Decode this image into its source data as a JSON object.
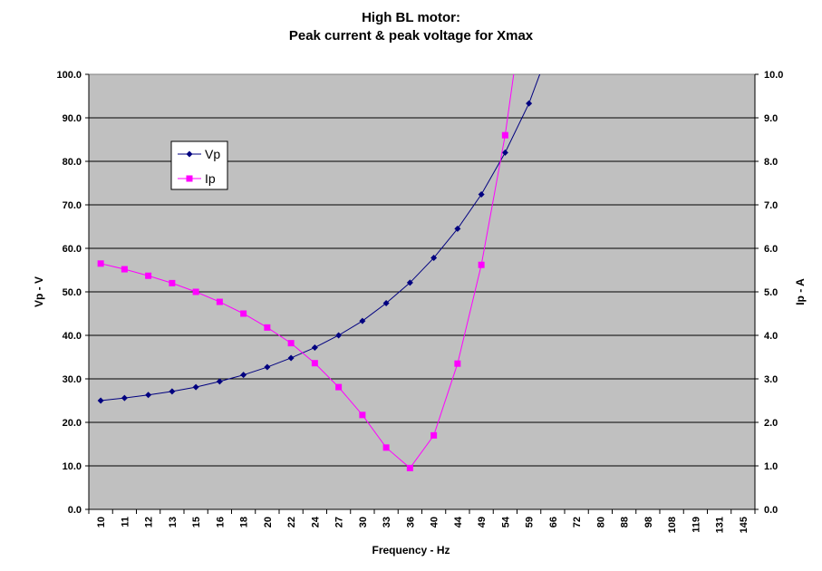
{
  "chart_data": {
    "type": "line",
    "title": "High BL motor:",
    "subtitle": "Peak current & peak voltage for Xmax",
    "xlabel": "Frequency - Hz",
    "ylabel": "Vp - V",
    "ylabel_right": "Ip - A",
    "categories": [
      "10",
      "11",
      "12",
      "13",
      "15",
      "16",
      "18",
      "20",
      "22",
      "24",
      "27",
      "30",
      "33",
      "36",
      "40",
      "44",
      "49",
      "54",
      "59",
      "66",
      "72",
      "80",
      "88",
      "98",
      "108",
      "119",
      "131",
      "145"
    ],
    "yticks_left": [
      "0.0",
      "10.0",
      "20.0",
      "30.0",
      "40.0",
      "50.0",
      "60.0",
      "70.0",
      "80.0",
      "90.0",
      "100.0"
    ],
    "yticks_right": [
      "0.0",
      "1.0",
      "2.0",
      "3.0",
      "4.0",
      "5.0",
      "6.0",
      "7.0",
      "8.0",
      "9.0",
      "10.0"
    ],
    "ylim": [
      0,
      100
    ],
    "ylim_right": [
      0,
      10
    ],
    "grid": true,
    "legend_position": "upper-left inside plot",
    "series": [
      {
        "name": "Vp",
        "axis": "left",
        "color": "#000080",
        "marker": "diamond",
        "values": [
          25.0,
          25.6,
          26.3,
          27.1,
          28.1,
          29.4,
          30.9,
          32.7,
          34.8,
          37.2,
          40.0,
          43.3,
          47.4,
          52.1,
          57.8,
          64.5,
          72.4,
          82.0,
          93.3,
          108.0,
          null,
          null,
          null,
          null,
          null,
          null,
          null,
          null
        ]
      },
      {
        "name": "Ip",
        "axis": "right",
        "color": "#FF00FF",
        "marker": "square",
        "values": [
          5.65,
          5.52,
          5.37,
          5.2,
          5.0,
          4.77,
          4.5,
          4.18,
          3.82,
          3.36,
          2.81,
          2.17,
          1.42,
          0.95,
          1.7,
          3.35,
          5.62,
          8.6,
          12.5,
          null,
          null,
          null,
          null,
          null,
          null,
          null,
          null,
          null
        ]
      }
    ]
  }
}
